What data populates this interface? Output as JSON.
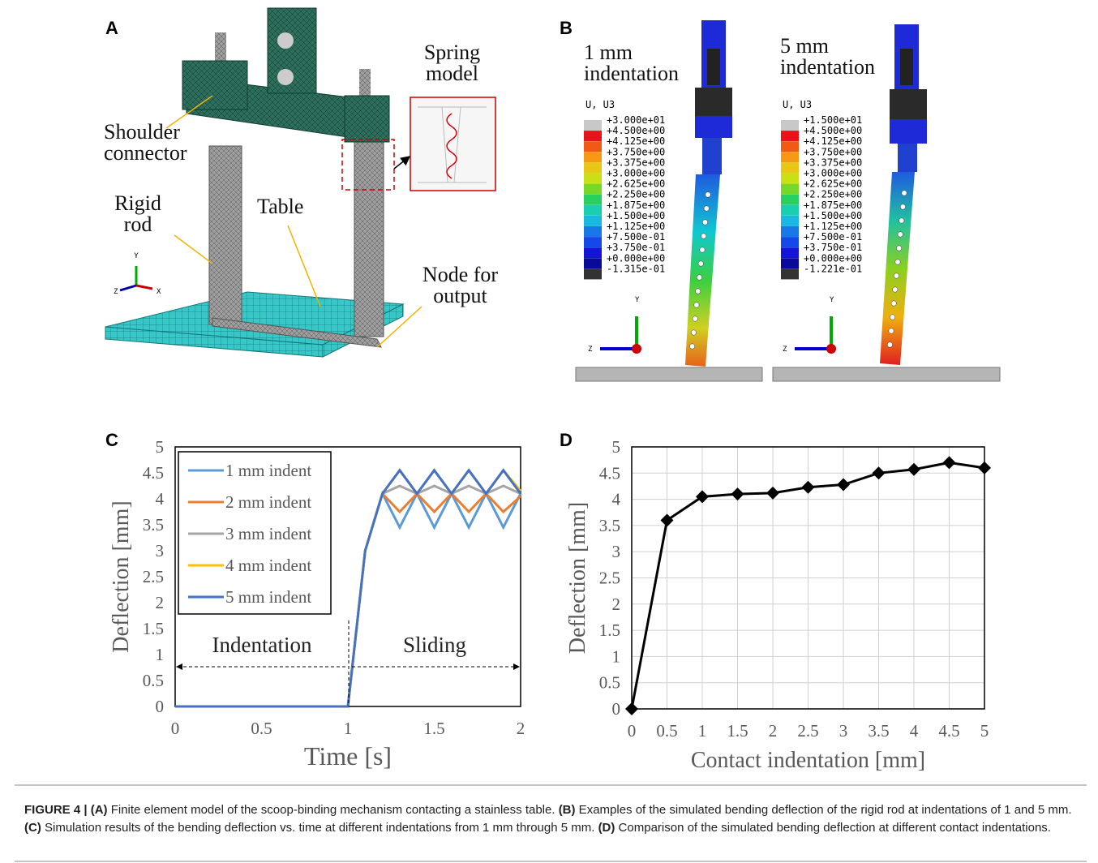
{
  "panel_a": {
    "label": "A",
    "annotations": [
      "Spring model",
      "Shoulder connector",
      "Rigid rod",
      "Table",
      "Node for output"
    ],
    "axes": [
      "Y",
      "Z",
      "X"
    ]
  },
  "panel_b": {
    "label": "B",
    "views": [
      {
        "title": "1 mm indentation",
        "legend_title": "U, U3",
        "legend_values": [
          "+3.000e+01",
          "+4.500e+00",
          "+4.125e+00",
          "+3.750e+00",
          "+3.375e+00",
          "+3.000e+00",
          "+2.625e+00",
          "+2.250e+00",
          "+1.875e+00",
          "+1.500e+00",
          "+1.125e+00",
          "+7.500e-01",
          "+3.750e-01",
          "+0.000e+00",
          "-1.315e-01"
        ],
        "axes": [
          "Y",
          "Z"
        ]
      },
      {
        "title": "5 mm indentation",
        "legend_title": "U, U3",
        "legend_values": [
          "+1.500e+01",
          "+4.500e+00",
          "+4.125e+00",
          "+3.750e+00",
          "+3.375e+00",
          "+3.000e+00",
          "+2.625e+00",
          "+2.250e+00",
          "+1.875e+00",
          "+1.500e+00",
          "+1.125e+00",
          "+7.500e-01",
          "+3.750e-01",
          "+0.000e+00",
          "-1.221e-01"
        ],
        "axes": [
          "Y",
          "Z"
        ]
      }
    ]
  },
  "chart_data": [
    {
      "type": "line",
      "panel": "C",
      "x_label": "Time [s]",
      "y_label": "Deflection [mm]",
      "annotations": [
        "Indentation",
        "Sliding"
      ],
      "x": [
        0,
        1,
        1.1,
        1.2,
        1.3,
        1.4,
        1.5,
        1.6,
        1.7,
        1.8,
        1.9,
        2
      ],
      "series": [
        {
          "name": "1 mm indent",
          "color": "#5b9bd5",
          "values": [
            0,
            0,
            3,
            4.1,
            3.45,
            4.1,
            3.45,
            4.1,
            3.45,
            4.1,
            3.45,
            4.1
          ]
        },
        {
          "name": "2 mm indent",
          "color": "#ed7d31",
          "values": [
            0,
            0,
            3,
            4.1,
            3.75,
            4.1,
            3.75,
            4.1,
            3.75,
            4.1,
            3.75,
            4.05
          ]
        },
        {
          "name": "3 mm indent",
          "color": "#a5a5a5",
          "values": [
            0,
            0,
            3,
            4.1,
            4.25,
            4.1,
            4.25,
            4.1,
            4.25,
            4.1,
            4.25,
            4.1
          ]
        },
        {
          "name": "4 mm indent",
          "color": "#ffc000",
          "values": [
            0,
            0,
            3,
            4.1,
            4.55,
            4.1,
            4.55,
            4.1,
            4.55,
            4.1,
            4.55,
            4.15
          ]
        },
        {
          "name": "5 mm indent",
          "color": "#4472c4",
          "values": [
            0,
            0,
            3,
            4.1,
            4.55,
            4.1,
            4.55,
            4.1,
            4.55,
            4.1,
            4.55,
            4.1
          ]
        }
      ],
      "xlim": [
        0,
        2
      ],
      "xticks": [
        0,
        0.5,
        1,
        1.5,
        2
      ],
      "ylim": [
        0,
        5
      ],
      "yticks": [
        0,
        0.5,
        1,
        1.5,
        2,
        2.5,
        3,
        3.5,
        4,
        4.5,
        5
      ],
      "grid": false,
      "legend": "upper left"
    },
    {
      "type": "line",
      "panel": "D",
      "x_label": "Contact indentation [mm]",
      "y_label": "Deflection [mm]",
      "x": [
        0,
        0.5,
        1,
        1.5,
        2,
        2.5,
        3,
        3.5,
        4,
        4.5,
        5
      ],
      "values": [
        0,
        3.6,
        4.05,
        4.1,
        4.12,
        4.23,
        4.28,
        4.5,
        4.57,
        4.7,
        4.6
      ],
      "color": "#000000",
      "marker": "diamond",
      "xlim": [
        0,
        5
      ],
      "xticks": [
        0,
        0.5,
        1,
        1.5,
        2,
        2.5,
        3,
        3.5,
        4,
        4.5,
        5
      ],
      "ylim": [
        0,
        5
      ],
      "yticks": [
        0,
        0.5,
        1,
        1.5,
        2,
        2.5,
        3,
        3.5,
        4,
        4.5,
        5
      ],
      "grid": true
    }
  ],
  "caption": [
    {
      "text": "FIGURE 4 | (A)",
      "bold": true
    },
    {
      "text": " Finite element model of the scoop-binding mechanism contacting a stainless table. "
    },
    {
      "text": "(B)",
      "bold": true
    },
    {
      "text": " Examples of the simulated bending deflection of the rigid rod at indentations of 1 and 5 mm. "
    },
    {
      "text": "(C)",
      "bold": true
    },
    {
      "text": " Simulation results of the bending deflection vs. time at different indentations from 1 mm through 5 mm. "
    },
    {
      "text": "(D)",
      "bold": true
    },
    {
      "text": " Comparison of the simulated bending deflection at different contact indentations."
    }
  ]
}
